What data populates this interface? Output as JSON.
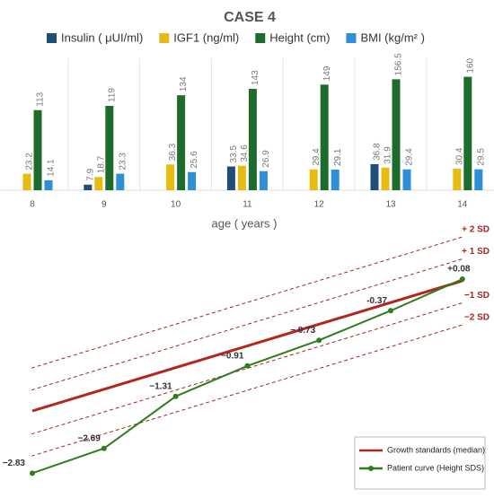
{
  "chart_data": [
    {
      "type": "bar",
      "title": "CASE  4",
      "x_label": "age ( years )",
      "categories": [
        "8",
        "9",
        "10",
        "11",
        "12",
        "13",
        "14"
      ],
      "series": [
        {
          "name": "Insulin ( μUI/ml)",
          "color": "#1f4e79",
          "values": [
            null,
            7.9,
            null,
            33.5,
            null,
            36.8,
            null
          ]
        },
        {
          "name": "IGF1 (ng/ml)",
          "color": "#e8bb12",
          "values": [
            23.2,
            18.7,
            36.3,
            34.6,
            29.4,
            31.9,
            30.4
          ]
        },
        {
          "name": "Height (cm)",
          "color": "#1e6b2e",
          "values": [
            113,
            119,
            134,
            143,
            149,
            156.5,
            160
          ]
        },
        {
          "name": "BMI (kg/m² )",
          "color": "#2e8fd6",
          "values": [
            14.1,
            23.3,
            25.6,
            26.9,
            29.1,
            29.4,
            29.5
          ]
        }
      ]
    },
    {
      "type": "line",
      "series": [
        {
          "name": "Growth standards (median)",
          "color": "#b3261e",
          "values": [
            0,
            0,
            0,
            0,
            0,
            0,
            0
          ]
        },
        {
          "name": "Patient curve (Height SDS)",
          "color": "#2e7d1e",
          "values": [
            -2.83,
            -2.69,
            -1.31,
            -0.91,
            -0.73,
            -0.37,
            0.08
          ],
          "value_labels": [
            "−2.83",
            "−2.69",
            "−1.31",
            "−0.91",
            "− 0.73",
            "-0.37",
            "+0.08"
          ]
        }
      ],
      "reference_lines": [
        {
          "label": "+ 2 SD",
          "value": 2
        },
        {
          "label": "+ 1 SD",
          "value": 1
        },
        {
          "label": "−1 SD",
          "value": -1
        },
        {
          "label": "−2 SD",
          "value": -2
        }
      ],
      "reference_color": "#a3261e"
    }
  ]
}
